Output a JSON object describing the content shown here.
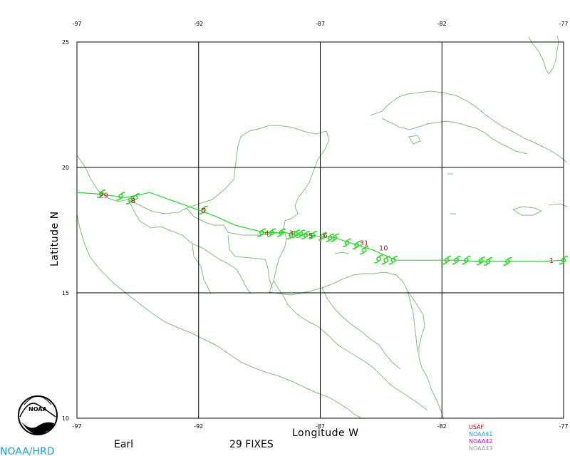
{
  "map": {
    "x_ticks": [
      "-97",
      "-92",
      "-87",
      "-82",
      "-77"
    ],
    "y_ticks": [
      "25",
      "20",
      "15",
      "10"
    ],
    "xlabel": "Longitude W",
    "ylabel": "Latitude N"
  },
  "footer": {
    "storm_name": "Earl",
    "fix_count": "29 FIXES",
    "org": "NOAA/HRD",
    "logo_text": "NOAA"
  },
  "legend": [
    {
      "label": "USAF",
      "color": "#cc0000"
    },
    {
      "label": "NOAA41",
      "color": "#1aa0d8"
    },
    {
      "label": "NOAA42",
      "color": "#cc00cc"
    },
    {
      "label": "NOAA43",
      "color": "#999999"
    }
  ],
  "colors": {
    "coast": "#7dbf7d",
    "track": "#22dd22",
    "fix_label": "#c8102e",
    "grid": "#000000"
  },
  "fix_labels": [
    {
      "text": "29",
      "lon": -96.0,
      "lat": 18.9
    },
    {
      "text": "8",
      "lon": -94.7,
      "lat": 18.7
    },
    {
      "text": "5",
      "lon": -91.8,
      "lat": 18.3
    },
    {
      "text": "4",
      "lon": -89.2,
      "lat": 17.4
    },
    {
      "text": "3",
      "lon": -88.2,
      "lat": 17.4
    },
    {
      "text": "5",
      "lon": -87.4,
      "lat": 17.3
    },
    {
      "text": "6",
      "lon": -86.8,
      "lat": 17.3
    },
    {
      "text": "31",
      "lon": -85.3,
      "lat": 17.0
    },
    {
      "text": "10",
      "lon": -84.5,
      "lat": 16.8
    },
    {
      "text": "1",
      "lon": -77.5,
      "lat": 16.3
    }
  ],
  "chart_data": {
    "type": "line",
    "title": "",
    "xlabel": "Longitude W",
    "ylabel": "Latitude N",
    "xlim": [
      -97,
      -77
    ],
    "ylim": [
      10,
      25
    ],
    "series": [
      {
        "x": [
          -77.0,
          -78.0,
          -79.0,
          -80.0,
          -80.8,
          -81.3,
          -82.2,
          -83.0,
          -83.9,
          -84.8,
          -85.8,
          -86.4,
          -87.0,
          -87.5,
          -88.0,
          -88.5,
          -89.3,
          -90.5,
          -91.3,
          -92.0,
          -93.0,
          -94.0,
          -95.0,
          -96.2,
          -97.0
        ],
        "y": [
          16.3,
          16.25,
          16.25,
          16.25,
          16.27,
          16.3,
          16.3,
          16.3,
          16.3,
          16.7,
          17.0,
          17.2,
          17.25,
          17.3,
          17.35,
          17.4,
          17.4,
          17.7,
          18.05,
          18.3,
          18.65,
          19.0,
          18.8,
          18.95,
          19.0
        ]
      }
    ],
    "fixes_lon": [
      -77.0,
      -79.3,
      -80.1,
      -80.4,
      -81.0,
      -81.4,
      -81.8,
      -84.0,
      -84.3,
      -84.6,
      -85.2,
      -85.5,
      -85.9,
      -86.4,
      -86.6,
      -86.9,
      -87.3,
      -87.6,
      -87.8,
      -88.0,
      -88.2,
      -88.6,
      -89.0,
      -89.4,
      -91.8,
      -94.6,
      -94.8,
      -96.0,
      -95.2
    ],
    "fixes_lat": [
      16.3,
      16.25,
      16.25,
      16.27,
      16.3,
      16.3,
      16.3,
      16.3,
      16.3,
      16.35,
      16.7,
      16.9,
      17.0,
      17.2,
      17.2,
      17.25,
      17.3,
      17.3,
      17.35,
      17.35,
      17.3,
      17.4,
      17.4,
      17.4,
      18.3,
      18.8,
      18.7,
      18.95,
      18.85
    ]
  }
}
